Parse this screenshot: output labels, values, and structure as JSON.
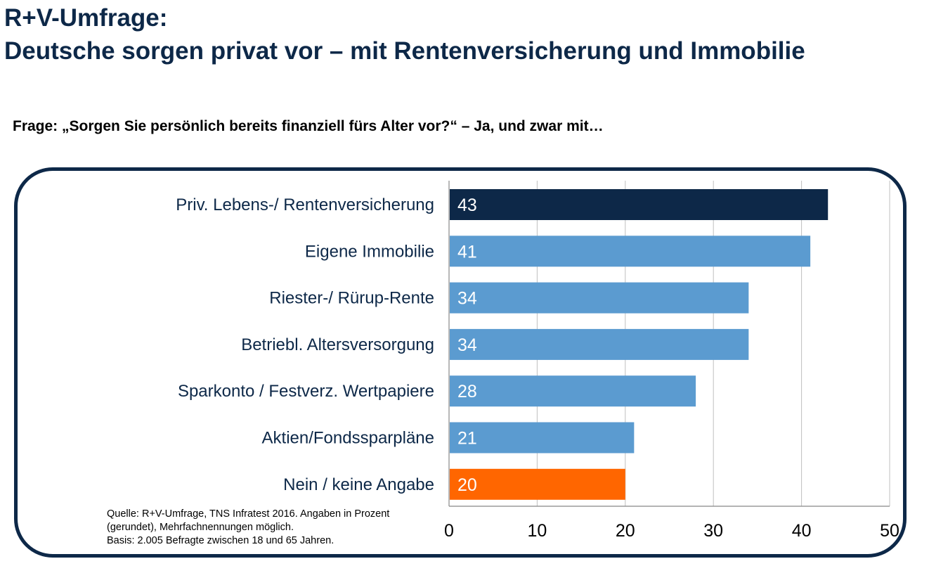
{
  "header": {
    "title_line1": "R+V-Umfrage:",
    "title_line2": "Deutsche sorgen privat vor – mit Rentenversicherung und Immobilie",
    "question": "Frage: „Sorgen Sie persönlich bereits finanziell fürs Alter vor?“ – Ja, und zwar mit…"
  },
  "chart_data": {
    "type": "bar",
    "orientation": "horizontal",
    "categories": [
      "Priv. Lebens-/ Rentenversicherung",
      "Eigene Immobilie",
      "Riester-/ Rürup-Rente",
      "Betriebl. Altersversorgung",
      "Sparkonto / Festverz. Wertpapiere",
      "Aktien/Fondssparpläne",
      "Nein / keine Angabe"
    ],
    "values": [
      43,
      41,
      34,
      34,
      28,
      21,
      20
    ],
    "data_labels": [
      "43",
      "41",
      "34",
      "34",
      "28",
      "21",
      "20"
    ],
    "bar_colors": [
      "#0d2848",
      "#5b9bd0",
      "#5b9bd0",
      "#5b9bd0",
      "#5b9bd0",
      "#5b9bd0",
      "#ff6600"
    ],
    "xlim": [
      0,
      50
    ],
    "xticks": [
      0,
      10,
      20,
      30,
      40,
      50
    ],
    "xtick_labels": [
      "0",
      "10",
      "20",
      "30",
      "40",
      "50"
    ],
    "grid": "vertical",
    "title": "",
    "xlabel": "",
    "ylabel": ""
  },
  "footer": {
    "source_line1": "Quelle: R+V-Umfrage, TNS Infratest 2016. Angaben in Prozent",
    "source_line2": "(gerundet), Mehrfachnennungen möglich.",
    "source_line3": "Basis: 2.005 Befragte zwischen 18 und 65 Jahren."
  }
}
